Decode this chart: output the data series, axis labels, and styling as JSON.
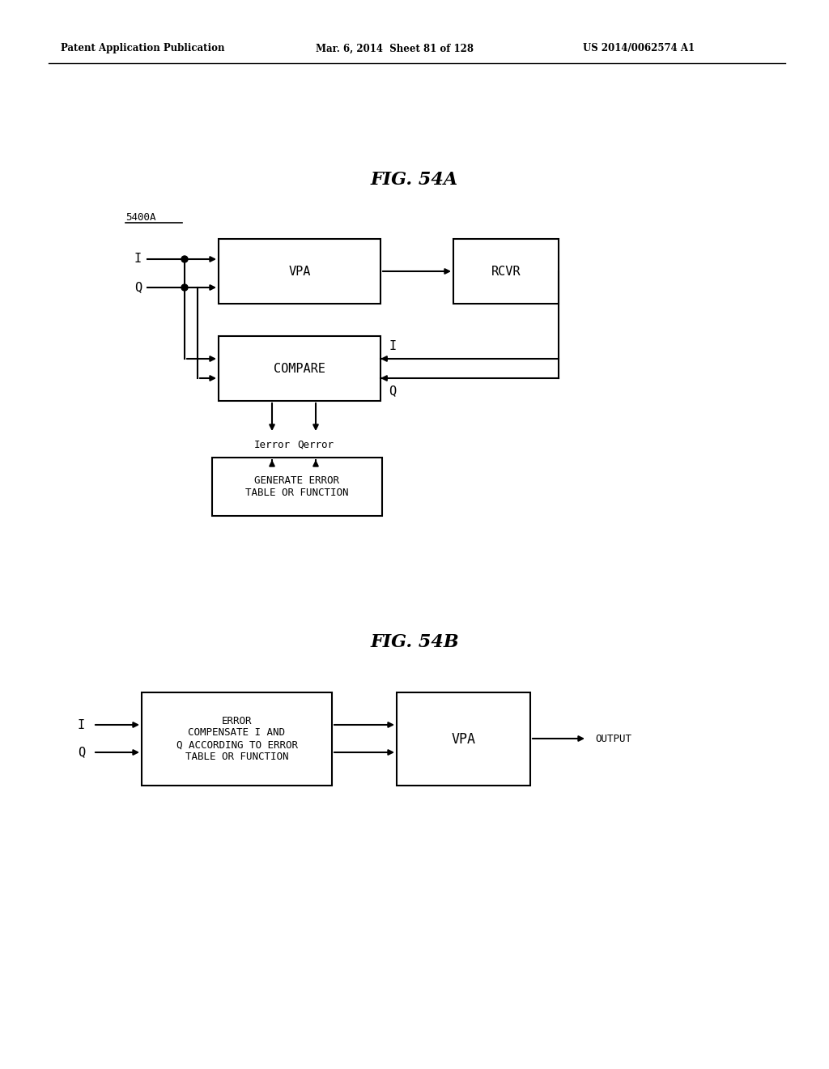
{
  "bg_color": "#ffffff",
  "header_left": "Patent Application Publication",
  "header_mid": "Mar. 6, 2014  Sheet 81 of 128",
  "header_right": "US 2014/0062574 A1",
  "fig_title_a": "FIG. 54A",
  "fig_title_b": "FIG. 54B",
  "label_5400A": "5400A",
  "vpa_label": "VPA",
  "rcvr_label": "RCVR",
  "compare_label": "COMPARE",
  "gen_error_label": "GENERATE ERROR\nTABLE OR FUNCTION",
  "error_comp_label": "ERROR\nCOMPENSATE I AND\nQ ACCORDING TO ERROR\nTABLE OR FUNCTION",
  "vpa2_label": "VPA",
  "output_label": "OUTPUT",
  "I_label": "I",
  "Q_label": "Q",
  "Ierror_label": "Ierror",
  "Qerror_label": "Qerror",
  "I2_label": "I",
  "Q2_label": "Q",
  "I3_label": "I",
  "Q3_label": "Q"
}
